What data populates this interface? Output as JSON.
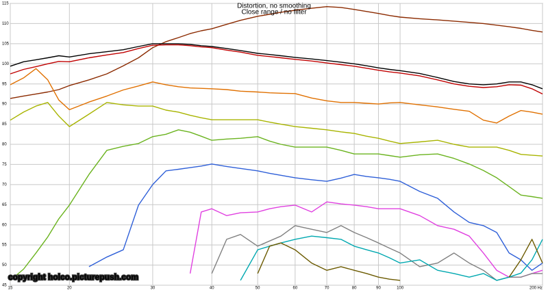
{
  "chart_data": {
    "type": "line",
    "title": "Distortion, no smoothing",
    "subtitle": "Close range / no filter",
    "annotation": "copyright holco.picturepush.com",
    "xscale": "log",
    "grid": true,
    "xlim": [
      15,
      200
    ],
    "ylim": [
      45,
      115
    ],
    "xticks": [
      15,
      20,
      30,
      40,
      50,
      60,
      70,
      80,
      90,
      100,
      {
        "value": 200,
        "label": "200 Hz"
      }
    ],
    "yticks": [
      45,
      50,
      55,
      60,
      65,
      70,
      75,
      80,
      85,
      90,
      95,
      100,
      105,
      110,
      115
    ],
    "x": [
      15,
      16,
      17,
      18,
      19,
      20,
      22,
      24,
      26,
      28,
      30,
      32,
      34,
      36,
      38,
      40,
      43,
      46,
      50,
      53,
      56,
      60,
      65,
      70,
      75,
      80,
      85,
      90,
      95,
      100,
      110,
      120,
      130,
      140,
      150,
      160,
      170,
      180,
      190,
      200
    ],
    "series": [
      {
        "color": "#8b2a00",
        "values": [
          91.4,
          92,
          92.5,
          93,
          93.6,
          94.6,
          96,
          97.5,
          99.5,
          101.5,
          104,
          105.5,
          106.5,
          107.5,
          108.2,
          108.7,
          109.8,
          110.8,
          111.8,
          112.3,
          112.8,
          113.3,
          113.8,
          114.2,
          114,
          113.5,
          113,
          112.5,
          112,
          111.6,
          111.2,
          110.9,
          110.6,
          110.3,
          110,
          109.6,
          109.2,
          108.8,
          108.3,
          107.9
        ]
      },
      {
        "color": "#000000",
        "values": [
          99.4,
          100.5,
          101,
          101.5,
          102,
          101.7,
          102.5,
          103,
          103.5,
          104.3,
          105,
          105,
          105,
          104.8,
          104.5,
          104.3,
          103.8,
          103.3,
          102.6,
          102.3,
          102,
          101.6,
          101.2,
          100.8,
          100.4,
          100,
          99.5,
          99,
          98.6,
          98.3,
          97.6,
          96.6,
          95.6,
          95,
          94.8,
          95,
          95.5,
          95.5,
          94.8,
          93.8
        ]
      },
      {
        "color": "#c00000",
        "values": [
          97.5,
          98.6,
          99.3,
          100,
          100.6,
          100.5,
          101.5,
          102.2,
          102.8,
          103.8,
          104.6,
          104.7,
          104.7,
          104.5,
          104.2,
          104,
          103.4,
          102.9,
          102.1,
          101.8,
          101.5,
          101.1,
          100.7,
          100.2,
          99.8,
          99.4,
          98.9,
          98.4,
          98,
          97.7,
          97,
          96,
          95,
          94.4,
          94.1,
          94.3,
          94.8,
          94.7,
          93.8,
          92.5
        ]
      },
      {
        "color": "#e07000",
        "values": [
          94.8,
          96.5,
          98.8,
          96,
          91,
          88.6,
          90.5,
          92,
          93.5,
          94.5,
          95.5,
          94.8,
          94.3,
          94,
          93.9,
          93.8,
          93.6,
          93.2,
          93,
          92.8,
          92.7,
          92.6,
          91.5,
          90.8,
          90.4,
          90.4,
          90.2,
          90,
          90.3,
          90.4,
          89.8,
          89.3,
          88.7,
          88.2,
          86,
          85.3,
          87,
          88.4,
          88,
          87.5
        ]
      },
      {
        "color": "#a8b400",
        "values": [
          86,
          88,
          89.5,
          90.4,
          87,
          84.4,
          87.5,
          90.4,
          89.8,
          89.5,
          89.5,
          88.5,
          88,
          87.2,
          86.6,
          86.1,
          86.1,
          86.1,
          86.1,
          85.5,
          85,
          84.4,
          84,
          83.6,
          83.1,
          82.7,
          82,
          81.5,
          80.8,
          80.2,
          80.6,
          81,
          80,
          79.3,
          79.3,
          79.3,
          78.5,
          77.5,
          77.3,
          77.1
        ]
      },
      {
        "color": "#6ab31e",
        "values": [
          46.2,
          49,
          53,
          57,
          61.5,
          64.9,
          72.5,
          78.5,
          79.5,
          80.2,
          81.9,
          82.5,
          83.6,
          83,
          82,
          81,
          81.3,
          81.5,
          81.9,
          80.8,
          80,
          79.3,
          79.3,
          79.3,
          78.5,
          77.6,
          77.6,
          77.6,
          77.2,
          76.8,
          77.4,
          77.6,
          76.5,
          75.1,
          73.5,
          71.7,
          69.5,
          67.4,
          67,
          66.6
        ]
      },
      {
        "color": "#2e5fd8",
        "values": [
          null,
          null,
          null,
          null,
          null,
          null,
          49.6,
          52,
          53.8,
          64.9,
          70,
          73.4,
          73.8,
          74.2,
          74.6,
          75.1,
          74.5,
          74,
          73.4,
          72.8,
          72.3,
          71.7,
          71.2,
          70.8,
          71.6,
          72.5,
          72,
          71.7,
          71.3,
          70.8,
          68.3,
          66.6,
          63.2,
          60.6,
          59.8,
          58.1,
          53,
          51.3,
          48.7,
          50.5
        ]
      },
      {
        "color": "#e040e0",
        "values": [
          null,
          null,
          null,
          null,
          null,
          null,
          null,
          null,
          null,
          null,
          null,
          null,
          null,
          47.9,
          63.2,
          64,
          62.3,
          63,
          63.2,
          64,
          64.5,
          64.9,
          63.2,
          65.7,
          65.2,
          64.9,
          64.5,
          64,
          64,
          64,
          62.3,
          59.8,
          58.9,
          57.2,
          53,
          48.7,
          47,
          47,
          47.9,
          48.7
        ]
      },
      {
        "color": "#808080",
        "values": [
          null,
          null,
          null,
          null,
          null,
          null,
          null,
          null,
          null,
          null,
          null,
          null,
          null,
          null,
          null,
          47.9,
          56.4,
          57.6,
          54.7,
          56,
          57.2,
          59.8,
          58.9,
          58.1,
          59.8,
          58.1,
          56.8,
          55.5,
          54.2,
          53,
          49.6,
          50.5,
          53,
          50.5,
          48.7,
          46.2,
          47,
          47,
          47.9,
          47.9
        ]
      },
      {
        "color": "#00a8b0",
        "values": [
          null,
          null,
          null,
          null,
          null,
          null,
          null,
          null,
          null,
          null,
          null,
          null,
          null,
          null,
          null,
          null,
          null,
          46.2,
          53.8,
          54.7,
          55.5,
          56.4,
          57.2,
          56.8,
          56.4,
          54.7,
          53.8,
          53,
          51.8,
          50.5,
          51.3,
          48.7,
          47.9,
          47,
          47.9,
          46.2,
          47,
          48,
          51.3,
          56.4
        ]
      },
      {
        "color": "#6b5a00",
        "values": [
          null,
          null,
          null,
          null,
          null,
          null,
          null,
          null,
          null,
          null,
          null,
          null,
          null,
          null,
          null,
          null,
          null,
          null,
          47.9,
          54.7,
          55.5,
          53.8,
          50.5,
          48.7,
          49.6,
          48.7,
          47.9,
          47,
          46.5,
          46.2,
          null,
          null,
          null,
          null,
          null,
          null,
          47,
          51.3,
          56.4,
          50.5
        ]
      }
    ]
  }
}
